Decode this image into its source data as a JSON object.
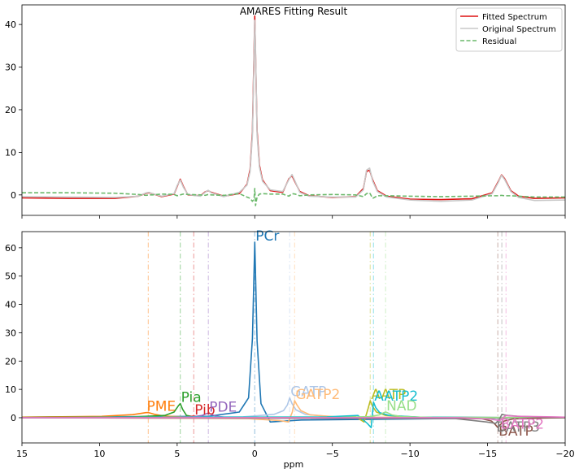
{
  "chart_data": [
    {
      "type": "line",
      "title": "AMARES Fitting Result",
      "xlim": [
        15,
        -20
      ],
      "ylim": [
        -4.8,
        44.6
      ],
      "yticks": [
        0,
        10,
        20,
        30,
        40
      ],
      "legend": "upper right",
      "x": [
        15,
        12,
        9,
        7.5,
        7.0,
        6.8,
        6.6,
        6.0,
        5.2,
        5.0,
        4.8,
        4.6,
        4.3,
        3.5,
        3.2,
        3.0,
        2.8,
        2.0,
        1.0,
        0.5,
        0.3,
        0.15,
        0.05,
        0,
        -0.05,
        -0.15,
        -0.3,
        -0.5,
        -1.0,
        -1.8,
        -2.2,
        -2.4,
        -2.6,
        -2.9,
        -3.5,
        -5,
        -6.5,
        -7.0,
        -7.2,
        -7.4,
        -7.6,
        -7.9,
        -8.5,
        -10,
        -12,
        -14,
        -15.3,
        -15.7,
        -15.9,
        -16.1,
        -16.5,
        -17,
        -18,
        -20
      ],
      "series": [
        {
          "name": "Fitted Spectrum",
          "color": "#dd1111",
          "linestyle": "solid",
          "values": [
            -0.7,
            -0.8,
            -0.8,
            -0.3,
            0.4,
            0.5,
            0.3,
            -0.4,
            0.2,
            2.0,
            3.7,
            2.0,
            0.0,
            -0.2,
            0.7,
            1.0,
            0.6,
            -0.3,
            0.3,
            2.5,
            6,
            15,
            33,
            42,
            33,
            15,
            7,
            3.5,
            1.0,
            0.6,
            3.8,
            4.5,
            3.0,
            0.8,
            -0.2,
            -0.6,
            -0.4,
            1.5,
            5.5,
            5.8,
            3.5,
            1.0,
            -0.3,
            -1.0,
            -1.1,
            -0.9,
            0.5,
            3.2,
            4.7,
            3.8,
            1.0,
            -0.3,
            -0.8,
            -0.7
          ]
        },
        {
          "name": "Original Spectrum",
          "color": "#c8c8c8",
          "linestyle": "solid",
          "values": [
            -0.4,
            -0.5,
            -0.6,
            -0.3,
            0.5,
            0.6,
            0.3,
            -0.3,
            0.3,
            2.2,
            3.5,
            1.8,
            0.1,
            -0.3,
            0.6,
            1.1,
            0.5,
            -0.4,
            0.6,
            2.3,
            5.5,
            14,
            32,
            41,
            34,
            14,
            6.5,
            3.2,
            1.2,
            0.8,
            3.6,
            4.8,
            3.2,
            0.6,
            -0.3,
            -0.5,
            -0.5,
            1.2,
            5.8,
            6.3,
            3.2,
            0.8,
            -0.5,
            -1.2,
            -1.5,
            -1.2,
            0.3,
            3.0,
            4.6,
            3.6,
            0.8,
            -0.6,
            -1.3,
            -1.2
          ]
        },
        {
          "name": "Residual",
          "color": "#6ab86a",
          "linestyle": "dashed",
          "values": [
            0.5,
            0.5,
            0.4,
            0.1,
            -0.1,
            0.0,
            0.0,
            0.2,
            0.1,
            -0.2,
            0.0,
            0.2,
            0.1,
            0.0,
            -0.1,
            0.1,
            0.0,
            -0.1,
            0.3,
            -0.5,
            -0.8,
            -1.5,
            -1.0,
            1.5,
            -2.5,
            -0.5,
            0.2,
            0.3,
            0.2,
            0.2,
            -0.3,
            0.3,
            0.2,
            -0.2,
            0.0,
            0.1,
            0.0,
            -0.4,
            0.3,
            0.5,
            -0.8,
            -0.2,
            -0.2,
            -0.3,
            -0.4,
            -0.3,
            -0.2,
            -0.2,
            -0.1,
            -0.2,
            -0.2,
            -0.3,
            -0.5,
            -0.5
          ]
        }
      ]
    },
    {
      "type": "line",
      "x_label": "ppm",
      "xlim": [
        15,
        -20
      ],
      "ylim": [
        -8.9,
        65.7
      ],
      "yticks": [
        0,
        10,
        20,
        30,
        40,
        50,
        60
      ],
      "xticks": [
        15,
        10,
        5,
        0,
        {
          "value": -5,
          "label": "−5"
        },
        {
          "value": -10,
          "label": "−10"
        },
        {
          "value": -15,
          "label": "−15"
        },
        {
          "value": -20,
          "label": "−20"
        }
      ],
      "series_labels": "peak",
      "series": [
        {
          "name": "PCr",
          "color": "#1f77b4",
          "center": 0,
          "x": [
            15,
            3,
            1,
            0.4,
            0.15,
            0,
            -0.15,
            -0.4,
            -1,
            -3,
            -20
          ],
          "values": [
            0.2,
            0.5,
            2,
            7,
            28,
            62,
            27,
            5,
            -1.5,
            -0.8,
            0.1
          ]
        },
        {
          "name": "PME",
          "color": "#ff7f0e",
          "center": 6.86,
          "x": [
            15,
            9.86,
            7.86,
            7.26,
            7.01,
            6.86,
            6.71,
            6.46,
            5.86,
            3.86,
            -20
          ],
          "values": [
            0.2,
            0.5,
            1.1,
            1.6,
            1.8,
            1.8,
            1.6,
            1.2,
            0.6,
            0.1,
            0
          ]
        },
        {
          "name": "Pia",
          "color": "#2ca02c",
          "center": 4.8,
          "x": [
            15,
            7.8,
            5.8,
            5.2,
            4.95,
            4.8,
            4.65,
            4.4,
            3.8,
            1.8,
            -20
          ],
          "values": [
            0.1,
            0.3,
            0.8,
            2,
            4,
            5,
            3,
            0.8,
            0.2,
            0.05,
            0
          ]
        },
        {
          "name": "Pib",
          "color": "#d62728",
          "center": 3.93,
          "x": [
            15,
            6.93,
            4.93,
            4.33,
            4.08,
            3.93,
            3.78,
            3.53,
            2.93,
            0.93,
            -20
          ],
          "values": [
            0,
            0.05,
            0.15,
            0.3,
            0.5,
            0.6,
            0.5,
            0.3,
            0.1,
            0.03,
            0
          ]
        },
        {
          "name": "PDE",
          "color": "#9467bd",
          "center": 2.99,
          "x": [
            15,
            5.99,
            3.99,
            3.39,
            3.14,
            2.99,
            2.84,
            2.59,
            1.99,
            -0.01,
            -20
          ],
          "values": [
            0,
            0.1,
            0.3,
            0.8,
            1.4,
            1.6,
            1.3,
            0.7,
            0.2,
            0.05,
            0
          ]
        },
        {
          "name": "GATP",
          "color": "#aec7e8",
          "center": -2.25,
          "x": [
            15,
            0.75,
            -1.25,
            -1.85,
            -2.1,
            -2.25,
            -2.4,
            -2.65,
            -3.25,
            -5.25,
            -20
          ],
          "values": [
            0,
            0.3,
            1.2,
            2.5,
            4.5,
            7,
            5,
            2.8,
            1.2,
            0.2,
            0
          ]
        },
        {
          "name": "GATP2",
          "color": "#ffbb78",
          "center": -2.57,
          "x": [
            15,
            0.43,
            -1.57,
            -2.17,
            -2.42,
            -2.57,
            -2.72,
            -2.97,
            -3.57,
            -5.57,
            -20
          ],
          "values": [
            0,
            -0.3,
            -1,
            -1.5,
            2,
            6,
            4.5,
            2.5,
            1,
            0.2,
            0
          ]
        },
        {
          "name": "AATP",
          "color": "#bcbd22",
          "center": -7.44,
          "x": [
            15,
            -4.44,
            -6.44,
            -7.04,
            -7.29,
            -7.44,
            -7.59,
            -7.84,
            -8.44,
            -10.44,
            -20
          ],
          "values": [
            0,
            0.2,
            0.5,
            -1.5,
            3,
            6,
            4,
            2,
            0.8,
            0.2,
            0
          ]
        },
        {
          "name": "AATP2",
          "color": "#17becf",
          "center": -7.65,
          "x": [
            15,
            -4.65,
            -6.65,
            -7.25,
            -7.5,
            -7.65,
            -7.8,
            -8.05,
            -8.65,
            -10.65,
            -20
          ],
          "values": [
            0,
            0.3,
            0.8,
            -2,
            -3.5,
            5.5,
            3.5,
            1.8,
            0.8,
            0.2,
            0
          ]
        },
        {
          "name": "NAD",
          "color": "#98df8a",
          "center": -8.43,
          "x": [
            15,
            -5.43,
            -7.43,
            -8.03,
            -8.28,
            -8.43,
            -8.58,
            -8.83,
            -9.43,
            -11.43,
            -20
          ],
          "values": [
            0,
            0.1,
            0.4,
            1,
            1.7,
            2,
            1.7,
            1,
            0.4,
            0.1,
            0
          ]
        },
        {
          "name": "BATP",
          "color": "#8c564b",
          "center": -15.66,
          "x": [
            15,
            -12.66,
            -14.66,
            -15.26,
            -15.51,
            -15.66,
            -15.81,
            -16.06,
            -16.66,
            -18.66,
            -20
          ],
          "values": [
            0,
            -0.1,
            -0.4,
            -1.2,
            -2.5,
            -3.5,
            -2.5,
            -1.2,
            -0.4,
            -0.1,
            0
          ]
        },
        {
          "name": "BATP3",
          "color": "#7f7f7f",
          "center": -15.92,
          "x": [
            15,
            -12.92,
            -14.92,
            -15.52,
            -15.77,
            -15.92,
            -16.07,
            -16.32,
            -16.92,
            -18.92,
            -20
          ],
          "values": [
            0,
            -0.3,
            -1.5,
            -2,
            -0.5,
            1.2,
            1,
            0.8,
            0.5,
            0.2,
            0.1
          ]
        },
        {
          "name": "BATP2",
          "color": "#e377c2",
          "center": -16.19,
          "x": [
            15,
            -13.19,
            -15.19,
            -15.79,
            -16.04,
            -16.19,
            -16.34,
            -16.59,
            -17.19,
            -19.19,
            -20
          ],
          "values": [
            0,
            0,
            -0.5,
            -1,
            0.2,
            0.8,
            0.7,
            0.6,
            0.5,
            0.3,
            0.2
          ]
        }
      ]
    }
  ]
}
